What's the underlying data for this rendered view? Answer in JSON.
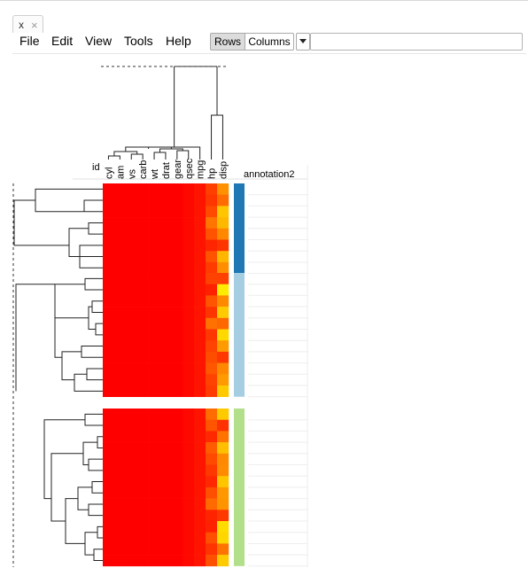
{
  "tab": {
    "label": "x"
  },
  "menu": [
    "File",
    "Edit",
    "View",
    "Tools",
    "Help"
  ],
  "toolbar": {
    "rows_label": "Rows",
    "columns_label": "Columns",
    "search_value": ""
  },
  "heatmap": {
    "id_label": "id",
    "annotation_label": "annotation2",
    "columns": [
      "cyl",
      "am",
      "vs",
      "carb",
      "wt",
      "drat",
      "gear",
      "qsec",
      "mpg",
      "hp",
      "disp"
    ],
    "row_groups": [
      {
        "color": "#1f77b4",
        "rows": 8
      },
      {
        "color": "#a6cee3",
        "rows": 11
      },
      {
        "color": "#b2df8a",
        "rows": 14
      }
    ],
    "colorscale": [
      "#ff0000",
      "#ffff00"
    ]
  }
}
